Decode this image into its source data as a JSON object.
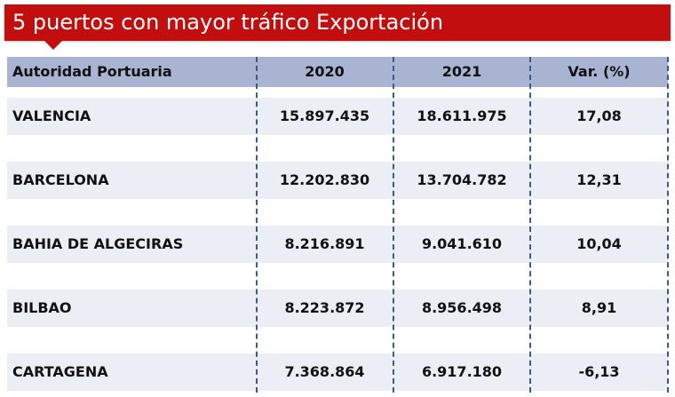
{
  "title": "5 puertos con mayor tráfico Exportación",
  "table": {
    "headers": [
      "Autoridad Portuaria",
      "2020",
      "2021",
      "Var. (%)"
    ],
    "rows": [
      [
        "VALENCIA",
        "15.897.435",
        "18.611.975",
        "17,08"
      ],
      [
        "BARCELONA",
        "12.202.830",
        "13.704.782",
        "12,31"
      ],
      [
        "BAHIA DE ALGECIRAS",
        "8.216.891",
        "9.041.610",
        "10,04"
      ],
      [
        "BILBAO",
        "8.223.872",
        "8.956.498",
        "8,91"
      ],
      [
        "CARTAGENA",
        "7.368.864",
        "6.917.180",
        "-6,13"
      ]
    ]
  },
  "colors": {
    "banner": "#c20e0e",
    "header": "#a9b3d2",
    "row": "#eceef6",
    "divider": "#3a5a8c"
  }
}
